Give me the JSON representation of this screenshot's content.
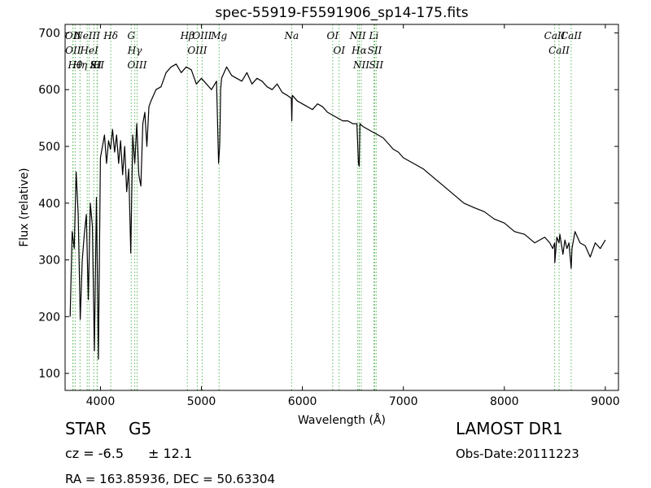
{
  "chart_data": {
    "type": "line",
    "title": "spec-55919-F5591906_sp14-175.fits",
    "xlabel": "Wavelength (Å)",
    "ylabel": "Flux (relative)",
    "xlim": [
      3650,
      9130
    ],
    "ylim": [
      70,
      715
    ],
    "xticks": [
      4000,
      5000,
      6000,
      7000,
      8000,
      9000
    ],
    "yticks": [
      100,
      200,
      300,
      400,
      500,
      600,
      700
    ],
    "grid": false,
    "series": [
      {
        "color": "#000000",
        "x": [
          3700,
          3720,
          3740,
          3760,
          3780,
          3800,
          3820,
          3840,
          3860,
          3880,
          3900,
          3920,
          3940,
          3960,
          3980,
          4000,
          4020,
          4040,
          4060,
          4080,
          4100,
          4120,
          4140,
          4160,
          4180,
          4200,
          4220,
          4240,
          4260,
          4280,
          4300,
          4320,
          4340,
          4360,
          4380,
          4400,
          4420,
          4440,
          4460,
          4480,
          4500,
          4550,
          4600,
          4650,
          4700,
          4750,
          4800,
          4850,
          4900,
          4950,
          5000,
          5050,
          5100,
          5150,
          5170,
          5180,
          5185,
          5190,
          5200,
          5250,
          5300,
          5350,
          5400,
          5450,
          5500,
          5550,
          5600,
          5650,
          5700,
          5750,
          5800,
          5850,
          5890,
          5895,
          5900,
          5950,
          6000,
          6050,
          6100,
          6150,
          6200,
          6250,
          6300,
          6350,
          6400,
          6450,
          6500,
          6540,
          6555,
          6563,
          6570,
          6600,
          6650,
          6700,
          6750,
          6800,
          6850,
          6900,
          6950,
          7000,
          7100,
          7200,
          7300,
          7400,
          7500,
          7600,
          7700,
          7800,
          7900,
          8000,
          8100,
          8200,
          8300,
          8400,
          8450,
          8480,
          8498,
          8500,
          8520,
          8542,
          8550,
          8580,
          8600,
          8620,
          8640,
          8662,
          8670,
          8700,
          8750,
          8800,
          8850,
          8900,
          8950,
          9000
        ],
        "y": [
          200,
          350,
          320,
          455,
          380,
          195,
          300,
          345,
          380,
          230,
          400,
          360,
          140,
          410,
          125,
          480,
          500,
          520,
          470,
          510,
          495,
          530,
          490,
          520,
          470,
          510,
          450,
          500,
          420,
          460,
          312,
          520,
          470,
          540,
          450,
          430,
          540,
          560,
          500,
          570,
          580,
          600,
          605,
          630,
          640,
          645,
          630,
          640,
          635,
          610,
          620,
          610,
          600,
          615,
          470,
          500,
          540,
          600,
          620,
          640,
          625,
          620,
          615,
          630,
          610,
          620,
          615,
          605,
          600,
          610,
          595,
          590,
          585,
          545,
          590,
          580,
          575,
          570,
          565,
          575,
          570,
          560,
          555,
          550,
          545,
          545,
          540,
          540,
          470,
          465,
          540,
          535,
          530,
          525,
          520,
          515,
          505,
          495,
          490,
          480,
          470,
          460,
          445,
          430,
          415,
          400,
          392,
          385,
          372,
          365,
          350,
          345,
          330,
          340,
          330,
          320,
          330,
          295,
          340,
          330,
          345,
          310,
          335,
          320,
          330,
          285,
          320,
          350,
          330,
          325,
          305,
          330,
          320,
          335
        ]
      }
    ],
    "line_markers": [
      {
        "x": 3727,
        "label": "OII"
      },
      {
        "x": 3729,
        "label": "OII"
      },
      {
        "x": 3750,
        "label": "Hθ"
      },
      {
        "x": 3798,
        "label": "Hη"
      },
      {
        "x": 3869,
        "label": "NeIII"
      },
      {
        "x": 3889,
        "label": "HeI"
      },
      {
        "x": 3934,
        "label": "K"
      },
      {
        "x": 3967,
        "label": "SII"
      },
      {
        "x": 3970,
        "label": "H"
      },
      {
        "x": 4102,
        "label": "Hδ"
      },
      {
        "x": 4305,
        "label": "G"
      },
      {
        "x": 4340,
        "label": "Hγ"
      },
      {
        "x": 4363,
        "label": "OIII"
      },
      {
        "x": 4861,
        "label": "Hβ"
      },
      {
        "x": 4959,
        "label": "OIII"
      },
      {
        "x": 5007,
        "label": "OIII"
      },
      {
        "x": 5175,
        "label": "Mg"
      },
      {
        "x": 5893,
        "label": "Na"
      },
      {
        "x": 6300,
        "label": "OI"
      },
      {
        "x": 6364,
        "label": "OI"
      },
      {
        "x": 6548,
        "label": "NII"
      },
      {
        "x": 6563,
        "label": "Hα"
      },
      {
        "x": 6583,
        "label": "NII"
      },
      {
        "x": 6708,
        "label": "Li"
      },
      {
        "x": 6716,
        "label": "SII"
      },
      {
        "x": 6731,
        "label": "SII"
      },
      {
        "x": 8498,
        "label": "CaII"
      },
      {
        "x": 8542,
        "label": "CaII"
      },
      {
        "x": 8662,
        "label": "CaII"
      }
    ]
  },
  "info": {
    "object_class": "STAR",
    "subclass": "G5",
    "cz": "cz = -6.5",
    "cz_err": "± 12.1",
    "radec": "RA = 163.85936, DEC = 50.63304",
    "survey": "LAMOST DR1",
    "obs_date": "Obs-Date:20111223"
  }
}
